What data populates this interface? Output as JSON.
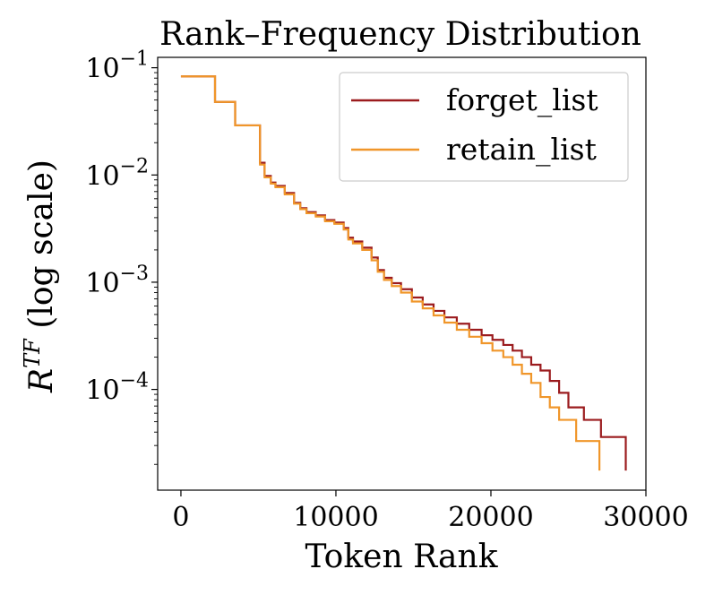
{
  "chart_data": {
    "type": "line",
    "title": "Rank–Frequency Distribution",
    "xlabel": "Token Rank",
    "ylabel_main": "R",
    "ylabel_superscript": "TF",
    "ylabel_suffix": " (log scale)",
    "xscale": "linear",
    "yscale": "log",
    "xlim": [
      -1500,
      30000
    ],
    "ylim": [
      1.15e-05,
      0.125
    ],
    "x_ticks": [
      {
        "value": 0,
        "label": "0"
      },
      {
        "value": 10000,
        "label": "10000"
      },
      {
        "value": 20000,
        "label": "20000"
      },
      {
        "value": 30000,
        "label": "30000"
      }
    ],
    "y_ticks": [
      {
        "value": 0.1,
        "base": "10",
        "exp": "−1"
      },
      {
        "value": 0.01,
        "base": "10",
        "exp": "−2"
      },
      {
        "value": 0.001,
        "base": "10",
        "exp": "−3"
      },
      {
        "value": 0.0001,
        "base": "10",
        "exp": "−4"
      }
    ],
    "legend": {
      "position": "top-right"
    },
    "series": [
      {
        "name": "forget_list",
        "color": "#9b1b1e",
        "step": "post",
        "x": [
          0,
          2200,
          3500,
          5100,
          5400,
          5800,
          6100,
          6700,
          7300,
          7700,
          8100,
          8700,
          9300,
          9900,
          10500,
          10800,
          11100,
          11700,
          12300,
          12700,
          13100,
          13600,
          14200,
          14900,
          15600,
          16300,
          17000,
          17800,
          18600,
          19400,
          20100,
          20800,
          21400,
          22000,
          22600,
          23200,
          23800,
          24400,
          25000,
          26000,
          27100,
          28700
        ],
        "y": [
          0.083,
          0.048,
          0.029,
          0.013,
          0.0098,
          0.0085,
          0.0079,
          0.0068,
          0.0055,
          0.0049,
          0.0045,
          0.0042,
          0.0038,
          0.0036,
          0.0032,
          0.0026,
          0.0024,
          0.0021,
          0.0017,
          0.0013,
          0.0011,
          0.00098,
          0.00086,
          0.00072,
          0.00062,
          0.00054,
          0.00047,
          0.00041,
          0.00036,
          0.00032,
          0.00029,
          0.00026,
          0.00023,
          0.0002,
          0.00017,
          0.00015,
          0.00012,
          9.3e-05,
          6.8e-05,
          5.2e-05,
          3.6e-05,
          1.75e-05
        ]
      },
      {
        "name": "retain_list",
        "color": "#f0962a",
        "step": "post",
        "x": [
          0,
          2200,
          3500,
          5100,
          5400,
          5800,
          6100,
          6700,
          7300,
          7700,
          8100,
          8700,
          9300,
          9900,
          10500,
          10800,
          11100,
          11700,
          12300,
          12700,
          13100,
          13600,
          14200,
          14900,
          15600,
          16300,
          17000,
          17800,
          18600,
          19400,
          20100,
          20800,
          21400,
          22000,
          22600,
          23200,
          23800,
          24400,
          25500,
          27000
        ],
        "y": [
          0.083,
          0.048,
          0.029,
          0.0125,
          0.0095,
          0.0083,
          0.0077,
          0.0066,
          0.0054,
          0.0048,
          0.0044,
          0.0041,
          0.0037,
          0.0035,
          0.0031,
          0.0025,
          0.0023,
          0.002,
          0.0016,
          0.00125,
          0.00105,
          0.00092,
          0.0008,
          0.00066,
          0.00057,
          0.00049,
          0.00042,
          0.00036,
          0.00031,
          0.00027,
          0.00023,
          0.0002,
          0.00017,
          0.00014,
          0.000115,
          8.5e-05,
          6.8e-05,
          5.2e-05,
          3.3e-05,
          1.75e-05
        ]
      }
    ]
  }
}
